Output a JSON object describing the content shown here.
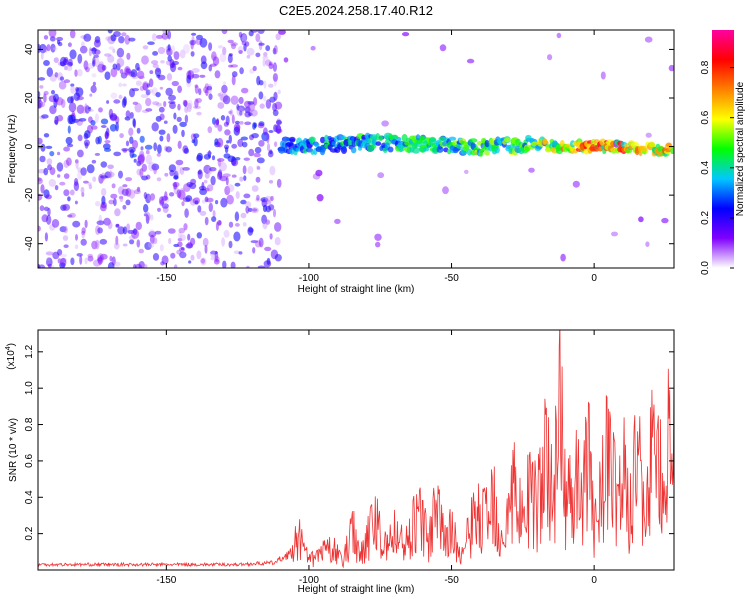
{
  "title": "C2E5.2024.258.17.40.R12",
  "chart_data": [
    {
      "type": "heatmap",
      "xlabel": "Height of straight line (km)",
      "ylabel": "Frequency (Hz)",
      "xlim": [
        -195,
        28
      ],
      "ylim": [
        -50,
        48
      ],
      "x_ticks": [
        -150,
        -100,
        -50,
        0
      ],
      "y_ticks": [
        -40,
        -20,
        0,
        20,
        40
      ],
      "colorbar": {
        "label": "Normalized spectral amplitude",
        "range": [
          0.0,
          0.95
        ],
        "ticks": [
          0.0,
          0.2,
          0.4,
          0.6,
          0.8
        ],
        "colors": [
          "#ffffff",
          "#8000ff",
          "#0000ff",
          "#00c8ff",
          "#00ff00",
          "#ffff00",
          "#ff8000",
          "#ff0000",
          "#ff00a0"
        ]
      },
      "ridge": {
        "x": [
          -195,
          -160,
          -140,
          -120,
          -110,
          -100,
          -80,
          -60,
          -40,
          -20,
          -10,
          0,
          10,
          20,
          28
        ],
        "frequency": [
          3,
          4,
          3,
          2,
          1,
          0,
          2,
          1,
          0,
          1,
          0,
          0,
          0,
          -1,
          -1
        ],
        "amplitude": [
          0.18,
          0.2,
          0.22,
          0.24,
          0.35,
          0.42,
          0.48,
          0.5,
          0.55,
          0.62,
          0.72,
          0.88,
          0.8,
          0.7,
          0.75
        ]
      }
    },
    {
      "type": "line",
      "xlabel": "Height of straight line (km)",
      "ylabel": "SNR (10 * v/v)",
      "y_scale_label": "(x10",
      "y_scale_exp": "4",
      "y_scale_close": ")",
      "xlim": [
        -195,
        28
      ],
      "ylim": [
        0,
        1.32
      ],
      "x_ticks": [
        -150,
        -100,
        -50,
        0
      ],
      "y_ticks": [
        0.2,
        0.4,
        0.6,
        0.8,
        1.0,
        1.2
      ],
      "y_tick_labels": [
        "0.2",
        "0.4",
        "0.6",
        "0.8",
        "1.0",
        "1.2"
      ],
      "color": "#ee3333",
      "series": [
        {
          "x": [
            -195,
            -180,
            -160,
            -140,
            -125,
            -112,
            -106,
            -104,
            -100,
            -96,
            -92,
            -88,
            -85,
            -82,
            -80,
            -77,
            -73,
            -70,
            -66,
            -62,
            -58,
            -55,
            -52,
            -50,
            -47,
            -44,
            -41,
            -38,
            -35,
            -33,
            -30,
            -28,
            -25,
            -22,
            -20,
            -17,
            -14,
            -12,
            -10,
            -7,
            -4,
            -2,
            0,
            3,
            5,
            8,
            10,
            12,
            15,
            18,
            20,
            22,
            25,
            28
          ],
          "values": [
            0.03,
            0.03,
            0.03,
            0.03,
            0.03,
            0.04,
            0.1,
            0.3,
            0.08,
            0.13,
            0.2,
            0.06,
            0.38,
            0.14,
            0.26,
            0.42,
            0.18,
            0.32,
            0.22,
            0.48,
            0.26,
            0.52,
            0.2,
            0.38,
            0.1,
            0.3,
            0.5,
            0.42,
            0.62,
            0.3,
            0.48,
            0.72,
            0.4,
            0.8,
            0.52,
            0.92,
            0.68,
            1.3,
            0.58,
            0.82,
            0.62,
            0.92,
            0.35,
            0.72,
            1.1,
            0.5,
            0.92,
            0.46,
            1.05,
            0.3,
            0.98,
            0.78,
            0.96,
            1.12
          ]
        }
      ]
    }
  ]
}
